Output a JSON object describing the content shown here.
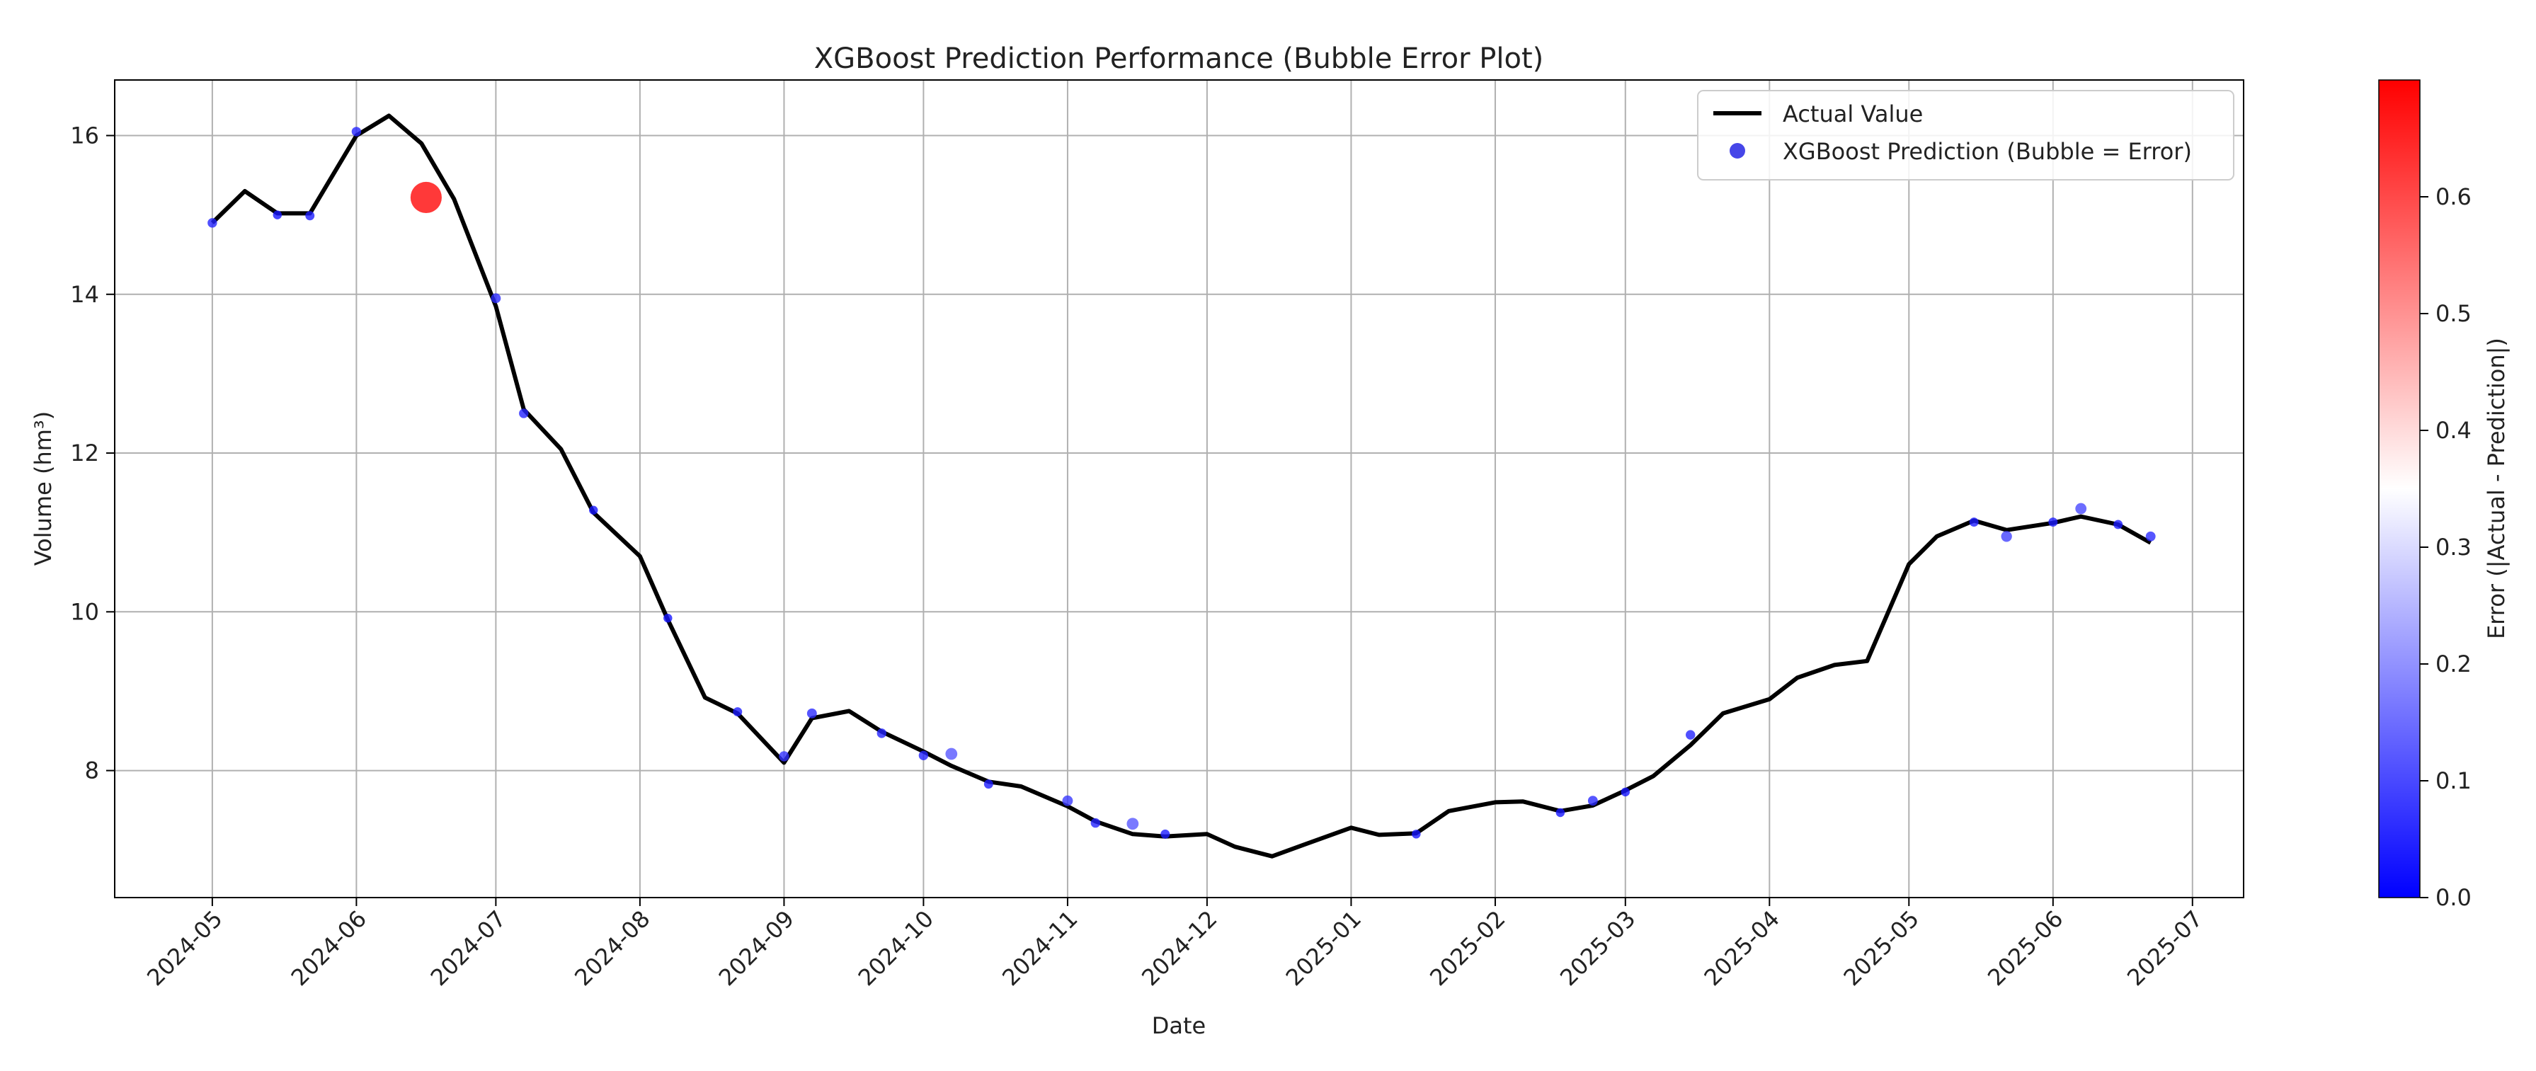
{
  "chart_data": {
    "type": "line",
    "title": "XGBoost Prediction Performance (Bubble Error Plot)",
    "xlabel": "Date",
    "ylabel": "Volume (hm³)",
    "ylim": [
      6.4,
      16.7
    ],
    "yticks": [
      8,
      10,
      12,
      14,
      16
    ],
    "xlim": [
      "2024-04-10",
      "2025-07-12"
    ],
    "xticks": [
      "2024-05",
      "2024-06",
      "2024-07",
      "2024-08",
      "2024-09",
      "2024-10",
      "2024-11",
      "2024-12",
      "2025-01",
      "2025-02",
      "2025-03",
      "2025-04",
      "2025-05",
      "2025-06",
      "2025-07"
    ],
    "grid": true,
    "legend_position": "top-right",
    "series": [
      {
        "name": "Actual Value",
        "color": "#000000",
        "x": [
          "2024-05-01",
          "2024-05-08",
          "2024-05-15",
          "2024-05-22",
          "2024-06-01",
          "2024-06-08",
          "2024-06-15",
          "2024-06-22",
          "2024-07-01",
          "2024-07-07",
          "2024-07-15",
          "2024-07-22",
          "2024-08-01",
          "2024-08-07",
          "2024-08-15",
          "2024-08-22",
          "2024-09-01",
          "2024-09-07",
          "2024-09-15",
          "2024-09-22",
          "2024-10-01",
          "2024-10-07",
          "2024-10-15",
          "2024-10-22",
          "2024-11-01",
          "2024-11-07",
          "2024-11-15",
          "2024-11-22",
          "2024-12-01",
          "2024-12-07",
          "2024-12-15",
          "2024-12-22",
          "2025-01-01",
          "2025-01-07",
          "2025-01-15",
          "2025-01-22",
          "2025-02-01",
          "2025-02-07",
          "2025-02-15",
          "2025-02-22",
          "2025-03-01",
          "2025-03-07",
          "2025-03-15",
          "2025-03-22",
          "2025-04-01",
          "2025-04-07",
          "2025-04-15",
          "2025-04-22",
          "2025-05-01",
          "2025-05-07",
          "2025-05-15",
          "2025-05-22",
          "2025-06-01",
          "2025-06-07",
          "2025-06-15",
          "2025-06-22"
        ],
        "values": [
          14.9,
          15.3,
          15.02,
          15.02,
          16.0,
          16.25,
          15.9,
          15.2,
          13.85,
          12.55,
          12.05,
          11.25,
          10.7,
          9.9,
          8.92,
          8.72,
          8.1,
          8.66,
          8.75,
          8.49,
          8.24,
          8.06,
          7.86,
          7.8,
          7.55,
          7.36,
          7.2,
          7.17,
          7.2,
          7.04,
          6.92,
          7.07,
          7.28,
          7.19,
          7.21,
          7.49,
          7.6,
          7.61,
          7.49,
          7.56,
          7.75,
          7.93,
          8.32,
          8.72,
          8.9,
          9.17,
          9.33,
          9.38,
          10.6,
          10.95,
          11.15,
          11.03,
          11.12,
          11.2,
          11.1,
          10.87
        ]
      },
      {
        "name": "XGBoost Prediction (Bubble = Error)",
        "type": "scatter",
        "colormap": "bwr",
        "color": "#3232e6",
        "x": [
          "2024-05-01",
          "2024-05-15",
          "2024-05-22",
          "2024-06-01",
          "2024-06-16",
          "2024-07-01",
          "2024-07-07",
          "2024-07-22",
          "2024-08-07",
          "2024-08-22",
          "2024-09-01",
          "2024-09-07",
          "2024-09-22",
          "2024-10-01",
          "2024-10-07",
          "2024-10-15",
          "2024-11-01",
          "2024-11-07",
          "2024-11-15",
          "2024-11-22",
          "2025-01-15",
          "2025-02-15",
          "2025-02-22",
          "2025-03-01",
          "2025-03-15",
          "2025-05-15",
          "2025-05-22",
          "2025-06-01",
          "2025-06-07",
          "2025-06-15",
          "2025-06-22"
        ],
        "values": [
          14.9,
          15.0,
          14.99,
          16.05,
          15.22,
          13.95,
          12.5,
          11.28,
          9.92,
          8.74,
          8.18,
          8.72,
          8.47,
          8.19,
          8.21,
          7.83,
          7.62,
          7.34,
          7.33,
          7.2,
          7.2,
          7.47,
          7.62,
          7.73,
          8.45,
          11.13,
          10.95,
          11.13,
          11.3,
          11.1,
          10.95
        ],
        "errors": [
          0.05,
          0.03,
          0.04,
          0.05,
          0.69,
          0.06,
          0.05,
          0.03,
          0.03,
          0.04,
          0.07,
          0.06,
          0.05,
          0.05,
          0.12,
          0.04,
          0.08,
          0.05,
          0.12,
          0.04,
          0.03,
          0.03,
          0.06,
          0.03,
          0.05,
          0.04,
          0.09,
          0.04,
          0.1,
          0.04,
          0.06
        ]
      }
    ],
    "colorbar": {
      "label": "Error (|Actual - Prediction|)",
      "range": [
        0.0,
        0.7
      ],
      "ticks": [
        "0.0",
        "0.1",
        "0.2",
        "0.3",
        "0.4",
        "0.5",
        "0.6"
      ],
      "colormap": "bwr"
    }
  }
}
